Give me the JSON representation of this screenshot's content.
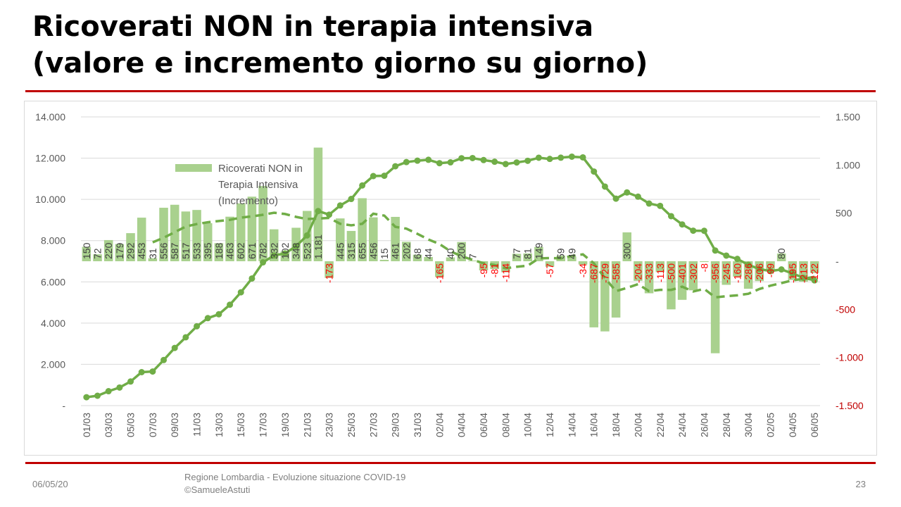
{
  "slide": {
    "title_line1": "Ricoverati NON in terapia intensiva",
    "title_line2": "(valore e incremento giorno su giorno)",
    "footer_date": "06/05/20",
    "footer_source_line1": "Regione Lombardia - Evoluzione situazione COVID-19",
    "footer_source_line2": "©SamueleAstuti",
    "page_number": "23",
    "accent_color": "#c00000"
  },
  "chart_data": {
    "type": "bar",
    "title": "",
    "categories": [
      "01/03",
      "02/03",
      "03/03",
      "04/03",
      "05/03",
      "06/03",
      "07/03",
      "08/03",
      "09/03",
      "10/03",
      "11/03",
      "12/03",
      "13/03",
      "14/03",
      "15/03",
      "16/03",
      "17/03",
      "18/03",
      "19/03",
      "20/03",
      "21/03",
      "22/03",
      "23/03",
      "24/03",
      "25/03",
      "26/03",
      "27/03",
      "28/03",
      "29/03",
      "30/03",
      "31/03",
      "01/04",
      "02/04",
      "03/04",
      "04/04",
      "05/04",
      "06/04",
      "07/04",
      "08/04",
      "09/04",
      "10/04",
      "11/04",
      "12/04",
      "13/04",
      "14/04",
      "15/04",
      "16/04",
      "17/04",
      "18/04",
      "19/04",
      "20/04",
      "21/04",
      "22/04",
      "23/04",
      "24/04",
      "25/04",
      "26/04",
      "27/04",
      "28/04",
      "29/04",
      "30/04",
      "01/05",
      "02/05",
      "03/05",
      "04/05",
      "05/05",
      "06/05"
    ],
    "x_tick_labels": [
      "01/03",
      "03/03",
      "05/03",
      "07/03",
      "09/03",
      "11/03",
      "13/03",
      "15/03",
      "17/03",
      "19/03",
      "21/03",
      "23/03",
      "25/03",
      "27/03",
      "29/03",
      "31/03",
      "02/04",
      "04/04",
      "06/04",
      "08/04",
      "10/04",
      "12/04",
      "14/04",
      "16/04",
      "18/04",
      "20/04",
      "22/04",
      "24/04",
      "26/04",
      "28/04",
      "30/04",
      "02/05",
      "04/05",
      "06/05"
    ],
    "series": [
      {
        "name": "Ricoverati NON in Terapia Intensiva (Incremento)",
        "type": "bar",
        "axis": "right",
        "color": "#a9d18e",
        "values": [
          150,
          72,
          220,
          179,
          292,
          453,
          31,
          556,
          587,
          517,
          533,
          395,
          188,
          463,
          602,
          671,
          782,
          332,
          102,
          348,
          523,
          1181,
          -173,
          445,
          315,
          655,
          456,
          15,
          461,
          202,
          68,
          44,
          -165,
          40,
          200,
          7,
          -95,
          -81,
          -114,
          77,
          81,
          149,
          -57,
          59,
          49,
          -34,
          -687,
          -729,
          -585,
          300,
          -204,
          -333,
          -113,
          -500,
          -401,
          -302,
          -8,
          -956,
          -245,
          -160,
          -286,
          -206,
          -99,
          80,
          -195,
          -213,
          -122
        ],
        "labels": [
          "150",
          "72",
          "220",
          "179",
          "292",
          "453",
          "31",
          "556",
          "587",
          "517",
          "533",
          "395",
          "188",
          "463",
          "602",
          "671",
          "782",
          "332",
          "102",
          "348",
          "523",
          "1.181",
          "-173",
          "445",
          "315",
          "655",
          "456",
          "15",
          "461",
          "202",
          "68",
          "44",
          "-165",
          "40",
          "200",
          "7",
          "-95",
          "-81",
          "-114",
          "77",
          "81",
          "149",
          "-57",
          "59",
          "49",
          "-34",
          "-687",
          "-729",
          "-585",
          "300",
          "-204",
          "-333",
          "-113",
          "-500",
          "-401",
          "-302",
          "-8",
          "-956",
          "-245",
          "-160",
          "-286",
          "-206",
          "-99",
          "80",
          "-195",
          "-213",
          "-122"
        ],
        "positive_label_color": "#404040",
        "negative_label_color": "#ff0000"
      },
      {
        "type": "line",
        "axis": "left",
        "color": "#70ad47",
        "markers": true,
        "values": [
          406,
          478,
          698,
          877,
          1169,
          1622,
          1653,
          2209,
          2796,
          3313,
          3846,
          4241,
          4429,
          4892,
          5494,
          6165,
          6947,
          7279,
          7381,
          7729,
          8252,
          9433,
          9260,
          9705,
          10020,
          10675,
          11131,
          11146,
          11607,
          11809,
          11877,
          11921,
          11756,
          11796,
          11996,
          12003,
          11908,
          11827,
          11713,
          11790,
          11871,
          12020,
          11963,
          12022,
          12071,
          12037,
          11350,
          10621,
          10036,
          10336,
          10132,
          9799,
          9686,
          9186,
          8785,
          8483,
          8475,
          7519,
          7274,
          7114,
          6828,
          6622,
          6523,
          6603,
          6408,
          6195,
          6073
        ]
      },
      {
        "type": "line",
        "axis": "right",
        "color": "#70ad47",
        "dashed": true,
        "values": [
          null,
          null,
          null,
          null,
          null,
          null,
          197,
          244,
          302,
          361,
          386,
          405,
          418,
          430,
          454,
          466,
          483,
          504,
          491,
          461,
          438,
          444,
          450,
          389,
          373,
          389,
          494,
          474,
          358,
          339,
          285,
          226,
          179,
          104,
          52,
          15,
          -21,
          -39,
          -73,
          -58,
          -46,
          30,
          33,
          30,
          55,
          72,
          -22,
          -175,
          -310,
          -277,
          -238,
          -311,
          -297,
          -298,
          -264,
          -314,
          -287,
          -375,
          -363,
          -354,
          -338,
          -288,
          -254,
          -227,
          -198,
          -182,
          -162
        ]
      }
    ],
    "left_axis": {
      "ylim": [
        0,
        14000
      ],
      "tick_labels": [
        "-",
        "2.000",
        "4.000",
        "6.000",
        "8.000",
        "10.000",
        "12.000",
        "14.000"
      ]
    },
    "right_axis": {
      "ylim": [
        -1500,
        1500
      ],
      "tick_labels": [
        "-1.500",
        "-1.000",
        "-500",
        "-",
        "500",
        "1.000",
        "1.500"
      ],
      "negative_tick_color": "#c00000"
    },
    "legend": {
      "position": "top-left",
      "entry": "Ricoverati NON in Terapia Intensiva (Incremento)",
      "lines": [
        "Ricoverati NON in",
        "Terapia Intensiva",
        "(Incremento)"
      ]
    },
    "grid": true
  }
}
